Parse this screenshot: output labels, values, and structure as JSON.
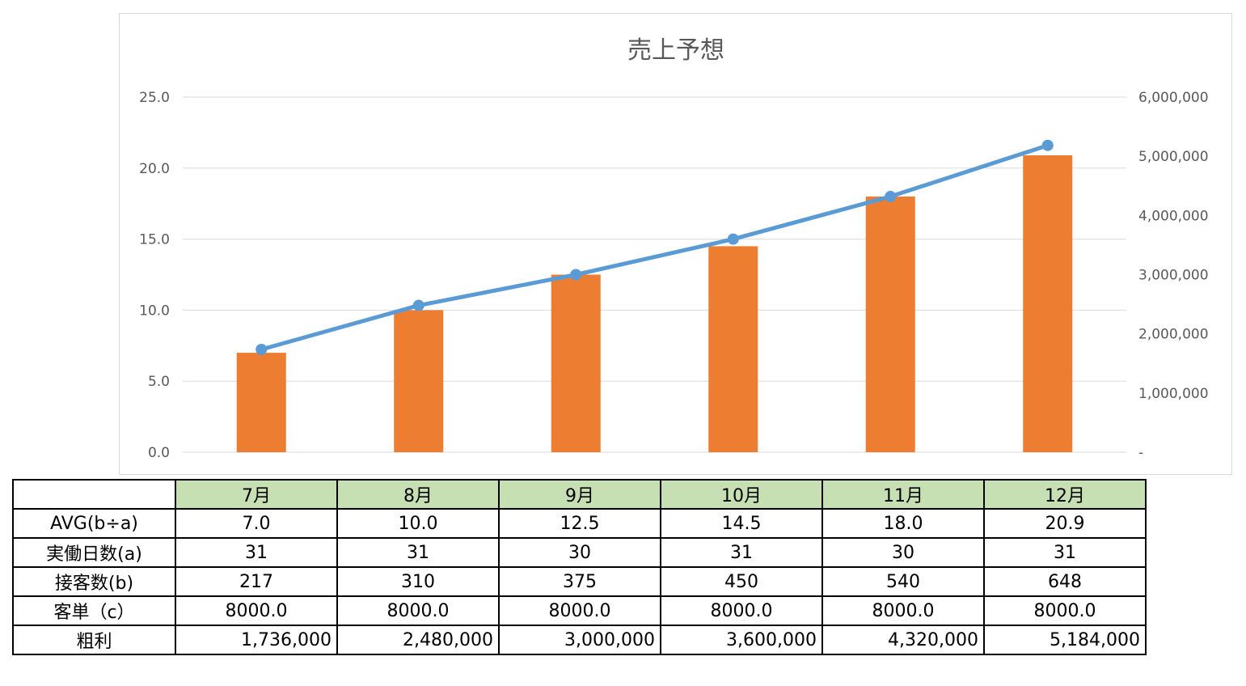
{
  "chart_data": {
    "type": "bar+line",
    "title": "売上予想",
    "categories": [
      "7月",
      "8月",
      "9月",
      "10月",
      "11月",
      "12月"
    ],
    "series": [
      {
        "type": "bar",
        "axis": "left",
        "color": "#ed7d31",
        "values": [
          7.0,
          10.0,
          12.5,
          14.5,
          18.0,
          20.9
        ]
      },
      {
        "type": "line",
        "axis": "right",
        "color": "#5b9bd5",
        "marker": "circle",
        "values": [
          1736000,
          2480000,
          3000000,
          3600000,
          4320000,
          5184000
        ]
      }
    ],
    "y_left": {
      "range": [
        0,
        25
      ],
      "ticks": [
        "0.0",
        "5.0",
        "10.0",
        "15.0",
        "20.0",
        "25.0"
      ]
    },
    "y_right": {
      "range": [
        0,
        6000000
      ],
      "ticks": [
        "-",
        "1,000,000",
        "2,000,000",
        "3,000,000",
        "4,000,000",
        "5,000,000",
        "6,000,000"
      ]
    },
    "grid": true
  },
  "table": {
    "months": [
      "7月",
      "8月",
      "9月",
      "10月",
      "11月",
      "12月"
    ],
    "rows": [
      {
        "label": "AVG(b÷a)",
        "values": [
          "7.0",
          "10.0",
          "12.5",
          "14.5",
          "18.0",
          "20.9"
        ]
      },
      {
        "label": "実働日数(a)",
        "values": [
          "31",
          "31",
          "30",
          "31",
          "30",
          "31"
        ]
      },
      {
        "label": "接客数(b)",
        "values": [
          "217",
          "310",
          "375",
          "450",
          "540",
          "648"
        ]
      },
      {
        "label": "客単（c）",
        "values": [
          "8000.0",
          "8000.0",
          "8000.0",
          "8000.0",
          "8000.0",
          "8000.0"
        ]
      },
      {
        "label": "粗利",
        "values": [
          "1,736,000",
          "2,480,000",
          "3,000,000",
          "3,600,000",
          "4,320,000",
          "5,184,000"
        ]
      }
    ]
  }
}
